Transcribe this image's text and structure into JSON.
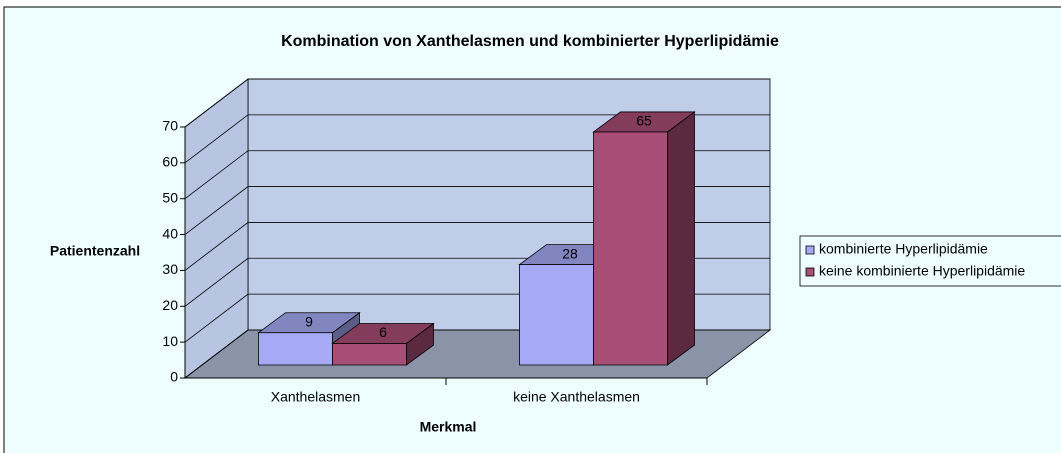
{
  "chart_data": {
    "type": "bar3d",
    "title": "Kombination von Xanthelasmen und kombinierter Hyperlipidämie",
    "x_label": "Merkmal",
    "y_label": "Patientenzahl",
    "categories": [
      "Xanthelasmen",
      "keine Xanthelasmen"
    ],
    "series": [
      {
        "name": "kombinierte Hyperlipidämie",
        "color": "#a6aaf6",
        "values": [
          9,
          28
        ]
      },
      {
        "name": "keine kombinierte Hyperlipidämie",
        "color": "#a84d75",
        "values": [
          6,
          65
        ]
      }
    ],
    "ylim": [
      0,
      70
    ],
    "yticks": [
      0,
      10,
      20,
      30,
      40,
      50,
      60,
      70
    ],
    "grid": true,
    "legend": "right"
  }
}
